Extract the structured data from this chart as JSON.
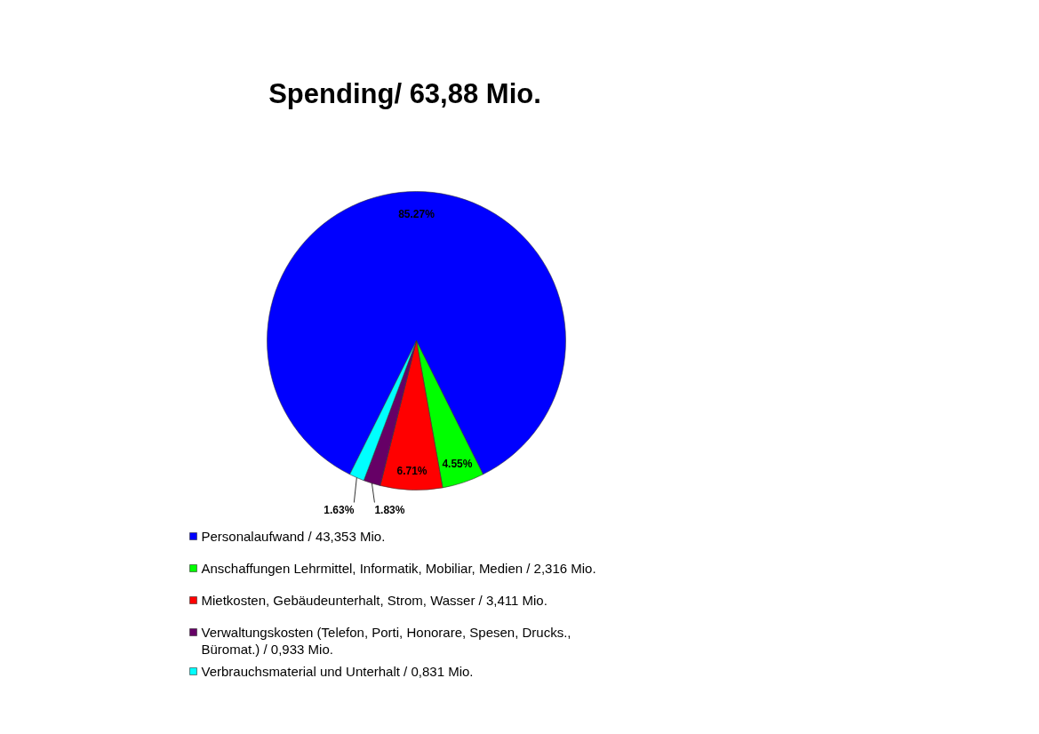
{
  "chart_data": {
    "type": "pie",
    "title": "Spending/ 63,88 Mio.",
    "categories": [
      "Personalaufwand / 43,353 Mio.",
      "Anschaffungen Lehrmittel, Informatik, Mobiliar, Medien / 2,316 Mio.",
      "Mietkosten, Gebäudeunterhalt, Strom, Wasser / 3,411 Mio.",
      "Verwaltungskosten (Telefon, Porti, Honorare, Spesen, Drucks., Büromat.) / 0,933 Mio.",
      "Verbrauchsmaterial und Unterhalt / 0,831 Mio."
    ],
    "values": [
      85.27,
      4.55,
      6.71,
      1.83,
      1.63
    ],
    "value_labels": [
      "85.27%",
      "4.55%",
      "6.71%",
      "1.83%",
      "1.63%"
    ],
    "colors": [
      "#0000ff",
      "#00ff00",
      "#ff0000",
      "#660066",
      "#00ffff"
    ],
    "legend": "bottom"
  }
}
